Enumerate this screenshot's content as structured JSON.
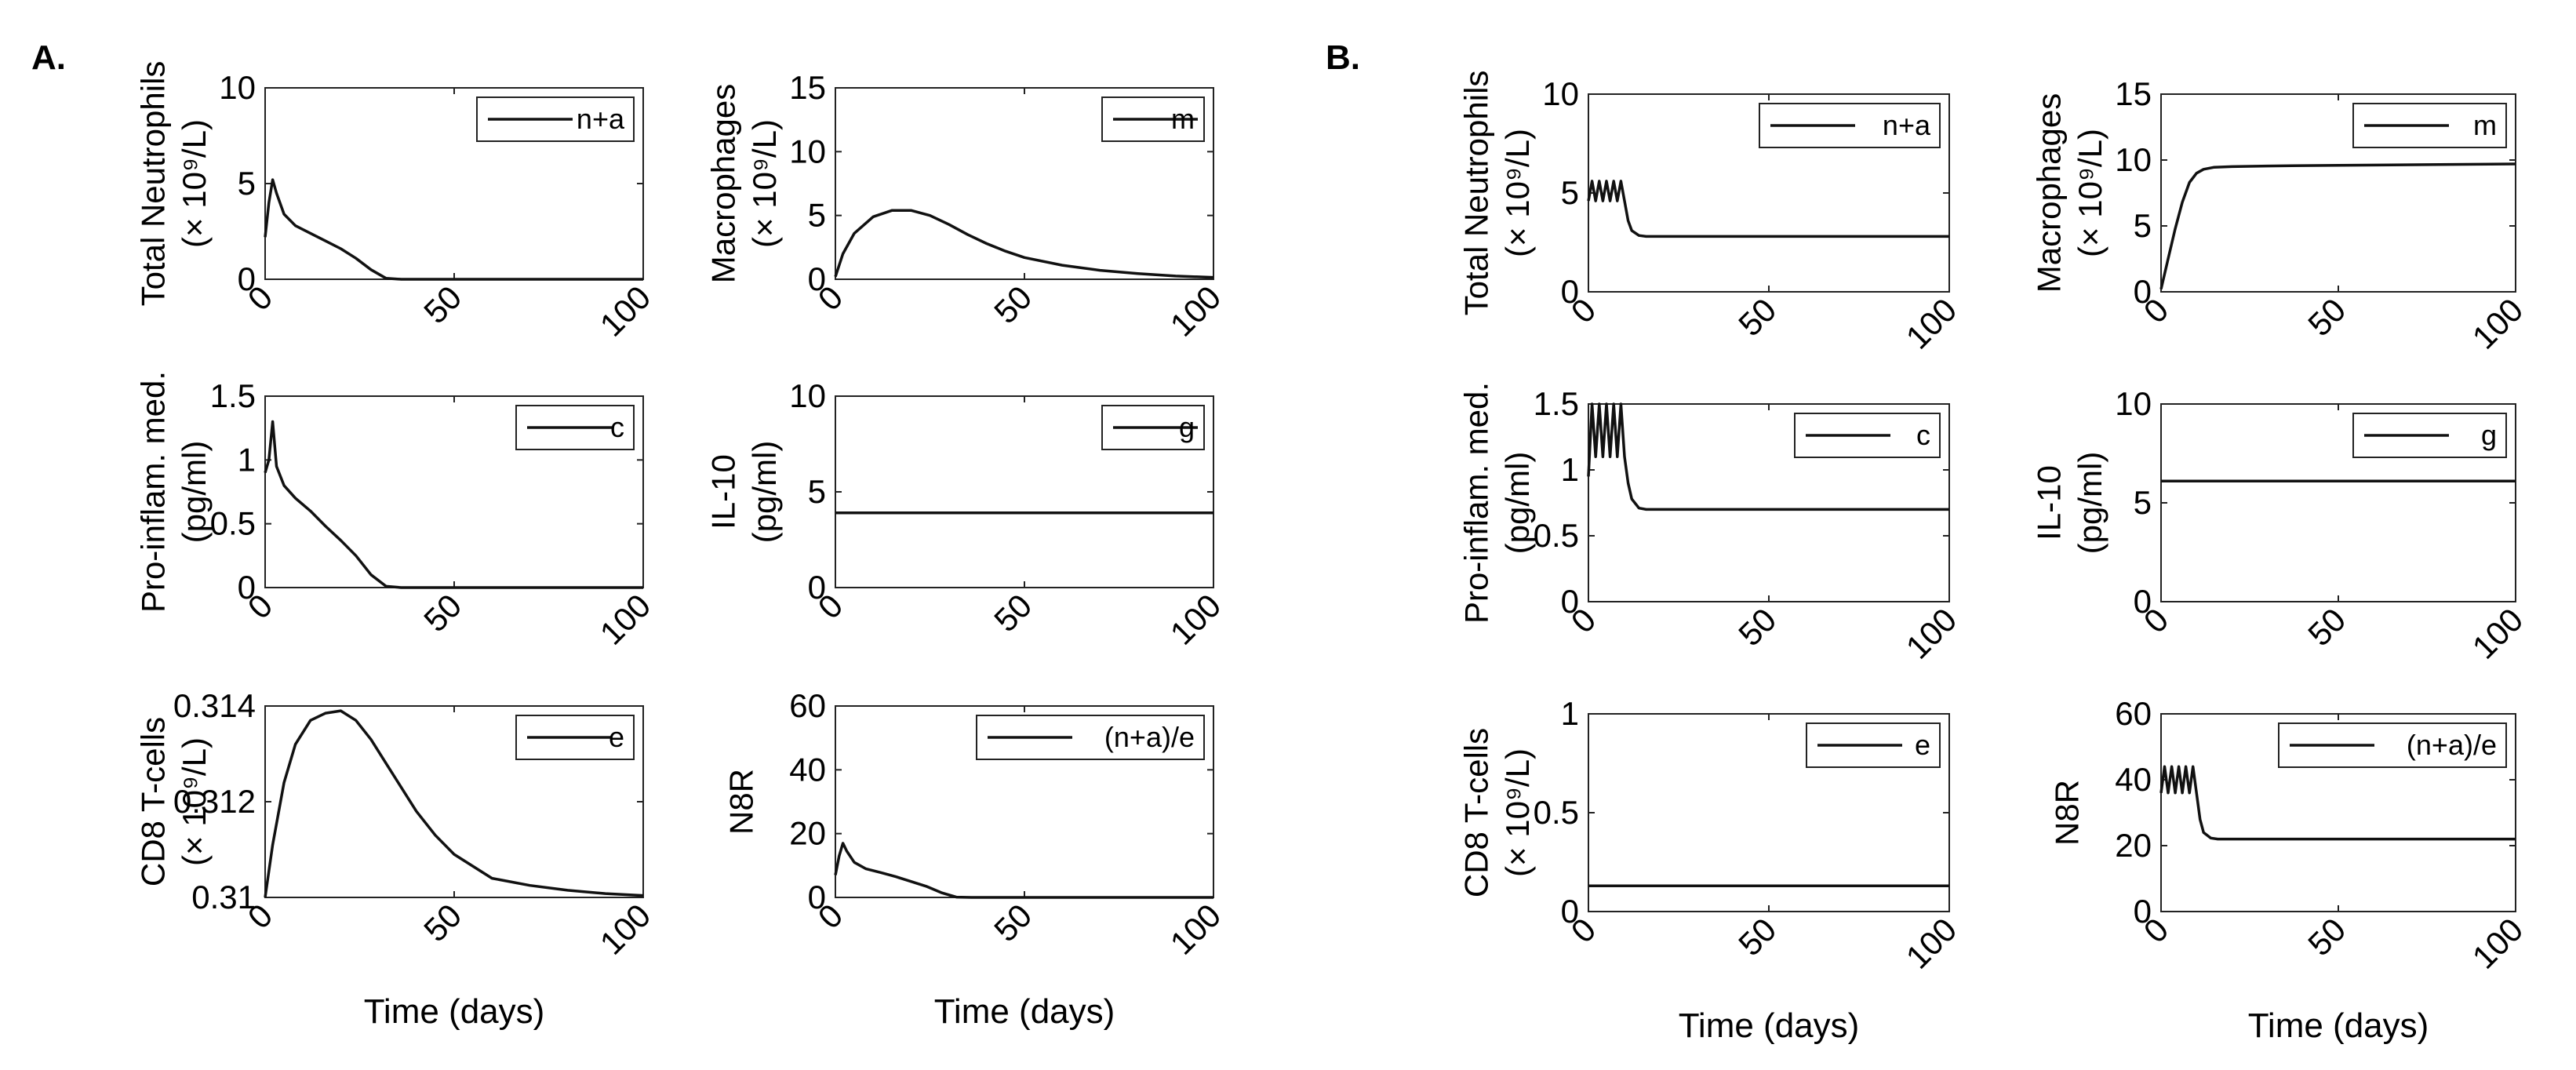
{
  "panel_labels": [
    "A.",
    "B."
  ],
  "chart_data": [
    {
      "panel": "A",
      "type": "line",
      "ylabel": "Total Neutrophils",
      "ylabel_units": "(× 10⁹/L)",
      "xlabel": "",
      "xlim": [
        0,
        100
      ],
      "ylim": [
        0,
        10
      ],
      "yticks": [
        "0",
        "5",
        "10"
      ],
      "xticks": [
        "0",
        "50",
        "100"
      ],
      "legend": "top-right",
      "legend_label": "n+a",
      "grid": false,
      "x": [
        0,
        1,
        2,
        3,
        5,
        8,
        12,
        16,
        20,
        24,
        28,
        32,
        36,
        40,
        50,
        60,
        80,
        100
      ],
      "y": [
        2.2,
        4.0,
        5.2,
        4.5,
        3.4,
        2.8,
        2.4,
        2.0,
        1.6,
        1.1,
        0.5,
        0.05,
        0,
        0,
        0,
        0,
        0,
        0
      ]
    },
    {
      "panel": "A",
      "type": "line",
      "ylabel": "Macrophages",
      "ylabel_units": "(× 10⁹/L)",
      "xlabel": "",
      "xlim": [
        0,
        100
      ],
      "ylim": [
        0,
        15
      ],
      "yticks": [
        "0",
        "5",
        "10",
        "15"
      ],
      "xticks": [
        "0",
        "50",
        "100"
      ],
      "legend": "top-right",
      "legend_label": "m",
      "grid": false,
      "x": [
        0,
        2,
        5,
        10,
        15,
        20,
        25,
        30,
        35,
        40,
        45,
        50,
        60,
        70,
        80,
        90,
        100
      ],
      "y": [
        0.2,
        2.0,
        3.6,
        4.9,
        5.4,
        5.4,
        5.0,
        4.3,
        3.5,
        2.8,
        2.2,
        1.7,
        1.1,
        0.7,
        0.45,
        0.25,
        0.15
      ]
    },
    {
      "panel": "A",
      "type": "line",
      "ylabel": "Pro-inflam. med.",
      "ylabel_units": "(pg/ml)",
      "xlabel": "",
      "xlim": [
        0,
        100
      ],
      "ylim": [
        0,
        1.5
      ],
      "yticks": [
        "0",
        "0.5",
        "1",
        "1.5"
      ],
      "xticks": [
        "0",
        "50",
        "100"
      ],
      "legend": "top-right",
      "legend_label": "c",
      "grid": false,
      "x": [
        0,
        1,
        2,
        3,
        5,
        8,
        12,
        16,
        20,
        24,
        28,
        32,
        36,
        40,
        50,
        60,
        80,
        100
      ],
      "y": [
        0.9,
        1.0,
        1.3,
        0.95,
        0.8,
        0.7,
        0.6,
        0.48,
        0.37,
        0.25,
        0.1,
        0.01,
        0,
        0,
        0,
        0,
        0,
        0
      ]
    },
    {
      "panel": "A",
      "type": "line",
      "ylabel": "IL-10",
      "ylabel_units": "(pg/ml)",
      "xlabel": "",
      "xlim": [
        0,
        100
      ],
      "ylim": [
        0,
        10
      ],
      "yticks": [
        "0",
        "5",
        "10"
      ],
      "xticks": [
        "0",
        "50",
        "100"
      ],
      "legend": "top-right",
      "legend_label": "g",
      "grid": false,
      "x": [
        0,
        100
      ],
      "y": [
        3.9,
        3.9
      ]
    },
    {
      "panel": "A",
      "type": "line",
      "ylabel": "CD8 T-cells",
      "ylabel_units": "(× 10⁹/L)",
      "xlabel": "Time (days)",
      "xlim": [
        0,
        100
      ],
      "ylim": [
        0.31,
        0.314
      ],
      "yticks": [
        "0.31",
        "0.312",
        "0.314"
      ],
      "xticks": [
        "0",
        "50",
        "100"
      ],
      "legend": "top-right",
      "legend_label": "e",
      "grid": false,
      "x": [
        0,
        2,
        5,
        8,
        12,
        16,
        20,
        24,
        28,
        32,
        36,
        40,
        45,
        50,
        60,
        70,
        80,
        90,
        100
      ],
      "y": [
        0.31,
        0.3111,
        0.3124,
        0.3132,
        0.3137,
        0.31385,
        0.3139,
        0.3137,
        0.3133,
        0.3128,
        0.3123,
        0.3118,
        0.3113,
        0.3109,
        0.3104,
        0.31025,
        0.31015,
        0.31008,
        0.31004
      ]
    },
    {
      "panel": "A",
      "type": "line",
      "ylabel": "N8R",
      "ylabel_units": "",
      "xlabel": "Time (days)",
      "xlim": [
        0,
        100
      ],
      "ylim": [
        0,
        60
      ],
      "yticks": [
        "0",
        "20",
        "40",
        "60"
      ],
      "xticks": [
        "0",
        "50",
        "100"
      ],
      "legend": "top-right",
      "legend_label": "(n+a)/e",
      "grid": false,
      "x": [
        0,
        1,
        2,
        3,
        5,
        8,
        12,
        16,
        20,
        24,
        28,
        32,
        36,
        40,
        50,
        60,
        80,
        100
      ],
      "y": [
        7,
        13,
        17,
        14.5,
        11,
        9,
        7.8,
        6.5,
        5,
        3.5,
        1.5,
        0.1,
        0,
        0,
        0,
        0,
        0,
        0
      ]
    },
    {
      "panel": "B",
      "type": "line",
      "ylabel": "Total Neutrophils",
      "ylabel_units": "(× 10⁹/L)",
      "xlabel": "",
      "xlim": [
        0,
        100
      ],
      "ylim": [
        0,
        10
      ],
      "yticks": [
        "0",
        "5",
        "10"
      ],
      "xticks": [
        "0",
        "50",
        "100"
      ],
      "legend": "top-right",
      "legend_label": "n+a",
      "grid": false,
      "x": [
        0,
        1,
        2,
        3,
        4,
        5,
        6,
        7,
        8,
        9,
        10,
        11,
        12,
        14,
        16,
        20,
        30,
        50,
        100
      ],
      "y": [
        4.6,
        5.6,
        4.6,
        5.6,
        4.6,
        5.6,
        4.6,
        5.6,
        4.6,
        5.6,
        4.6,
        3.6,
        3.1,
        2.85,
        2.8,
        2.8,
        2.8,
        2.8,
        2.8
      ]
    },
    {
      "panel": "B",
      "type": "line",
      "ylabel": "Macrophages",
      "ylabel_units": "(× 10⁹/L)",
      "xlabel": "",
      "xlim": [
        0,
        100
      ],
      "ylim": [
        0,
        15
      ],
      "yticks": [
        "0",
        "5",
        "10",
        "15"
      ],
      "xticks": [
        "0",
        "50",
        "100"
      ],
      "legend": "top-right",
      "legend_label": "m",
      "grid": false,
      "x": [
        0,
        2,
        4,
        6,
        8,
        10,
        12,
        15,
        20,
        30,
        50,
        75,
        100
      ],
      "y": [
        0.2,
        2.5,
        4.8,
        6.8,
        8.3,
        9.0,
        9.3,
        9.45,
        9.5,
        9.55,
        9.6,
        9.65,
        9.7
      ]
    },
    {
      "panel": "B",
      "type": "line",
      "ylabel": "Pro-inflam. med.",
      "ylabel_units": "(pg/ml)",
      "xlabel": "",
      "xlim": [
        0,
        100
      ],
      "ylim": [
        0,
        1.5
      ],
      "yticks": [
        "0",
        "0.5",
        "1",
        "1.5"
      ],
      "xticks": [
        "0",
        "50",
        "100"
      ],
      "legend": "top-right",
      "legend_label": "c",
      "grid": false,
      "x": [
        0,
        1,
        2,
        3,
        4,
        5,
        6,
        7,
        8,
        9,
        10,
        11,
        12,
        14,
        16,
        20,
        30,
        50,
        100
      ],
      "y": [
        0.95,
        1.5,
        1.1,
        1.5,
        1.1,
        1.5,
        1.1,
        1.5,
        1.1,
        1.5,
        1.1,
        0.9,
        0.78,
        0.71,
        0.7,
        0.7,
        0.7,
        0.7,
        0.7
      ]
    },
    {
      "panel": "B",
      "type": "line",
      "ylabel": "IL-10",
      "ylabel_units": "(pg/ml)",
      "xlabel": "",
      "xlim": [
        0,
        100
      ],
      "ylim": [
        0,
        10
      ],
      "yticks": [
        "0",
        "5",
        "10"
      ],
      "xticks": [
        "0",
        "50",
        "100"
      ],
      "legend": "top-right",
      "legend_label": "g",
      "grid": false,
      "x": [
        0,
        100
      ],
      "y": [
        6.1,
        6.1
      ]
    },
    {
      "panel": "B",
      "type": "line",
      "ylabel": "CD8 T-cells",
      "ylabel_units": "(× 10⁹/L)",
      "xlabel": "Time (days)",
      "xlim": [
        0,
        100
      ],
      "ylim": [
        0,
        1
      ],
      "yticks": [
        "0",
        "0.5",
        "1"
      ],
      "xticks": [
        "0",
        "50",
        "100"
      ],
      "legend": "top-right",
      "legend_label": "e",
      "grid": false,
      "x": [
        0,
        100
      ],
      "y": [
        0.13,
        0.13
      ]
    },
    {
      "panel": "B",
      "type": "line",
      "ylabel": "N8R",
      "ylabel_units": "",
      "xlabel": "Time (days)",
      "xlim": [
        0,
        100
      ],
      "ylim": [
        0,
        60
      ],
      "yticks": [
        "0",
        "20",
        "40",
        "60"
      ],
      "xticks": [
        "0",
        "50",
        "100"
      ],
      "legend": "top-right",
      "legend_label": "(n+a)/e",
      "grid": false,
      "x": [
        0,
        1,
        2,
        3,
        4,
        5,
        6,
        7,
        8,
        9,
        10,
        11,
        12,
        14,
        16,
        20,
        30,
        50,
        100
      ],
      "y": [
        36,
        44,
        36,
        44,
        36,
        44,
        36,
        44,
        36,
        44,
        36,
        28,
        24,
        22.3,
        22,
        22,
        22,
        22,
        22
      ]
    }
  ]
}
